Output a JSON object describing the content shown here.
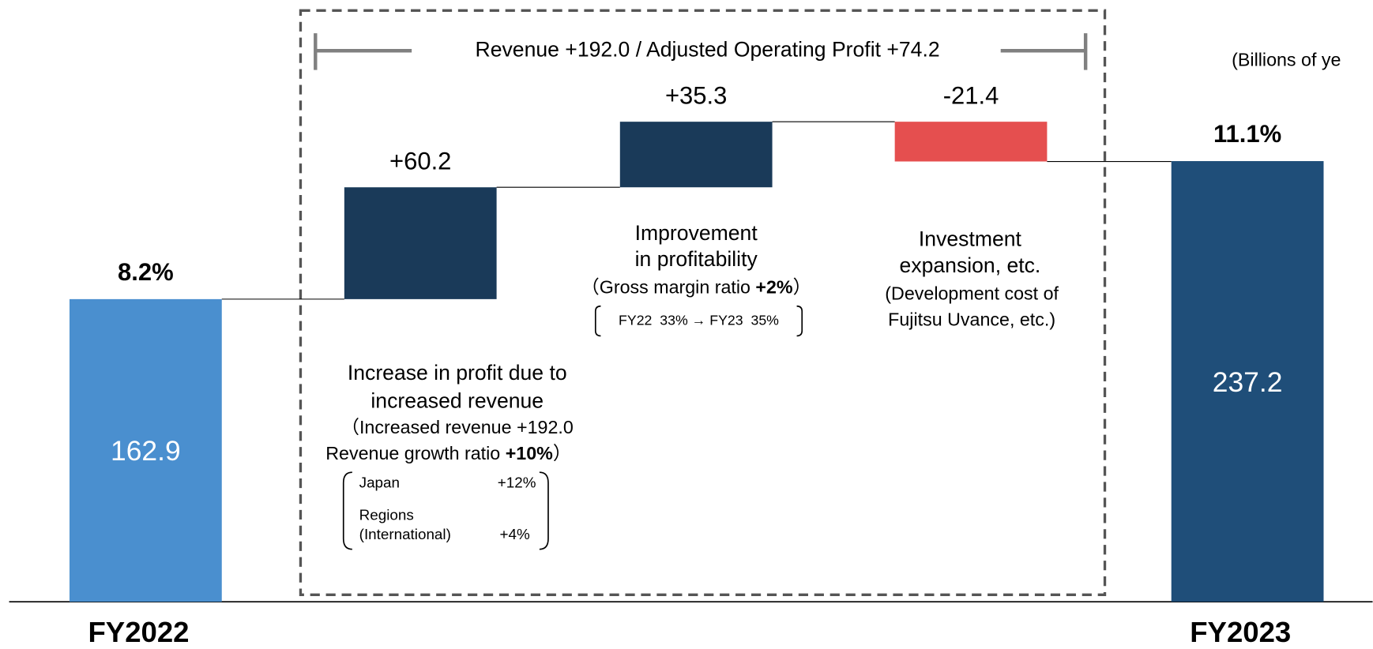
{
  "chart_data": {
    "type": "waterfall",
    "unit_note": "(Billions of ye",
    "bracket_label": "Revenue +192.0 / Adjusted Operating Profit +74.2",
    "categories": [
      "FY2022",
      null,
      null,
      null,
      "FY2023"
    ],
    "values": [
      162.9,
      60.2,
      35.3,
      -21.4,
      237.2
    ],
    "value_labels": [
      "162.9",
      "+60.2",
      "+35.3",
      "-21.4",
      "237.2"
    ],
    "is_total": [
      true,
      false,
      false,
      false,
      true
    ],
    "colors": [
      "#4a8fcf",
      "#1a3a59",
      "#1a3a59",
      "#e54f4f",
      "#1f4e79"
    ],
    "margin_labels": [
      "8.2%",
      null,
      null,
      null,
      "11.1%"
    ],
    "notes": {
      "revenue": {
        "lines": [
          "Increase in profit due to",
          "increased revenue",
          "（Increased revenue +192.0"
        ],
        "growth": [
          "Revenue growth ratio ",
          "+10%",
          "）"
        ],
        "detail": [
          {
            "region": "Japan",
            "growth": "+12%"
          },
          {
            "region": [
              "Regions",
              "(International)"
            ],
            "growth": "+4%"
          }
        ]
      },
      "profitability": {
        "lines": [
          "Improvement",
          "in profitability"
        ],
        "margin": [
          "（Gross margin ratio ",
          "+2%",
          "）"
        ],
        "detail": "FY22  33% → FY23  35%"
      },
      "investment": {
        "lines": [
          "Investment",
          "expansion, etc.",
          "(Development cost of",
          "Fujitsu Uvance, etc.)"
        ]
      }
    }
  }
}
